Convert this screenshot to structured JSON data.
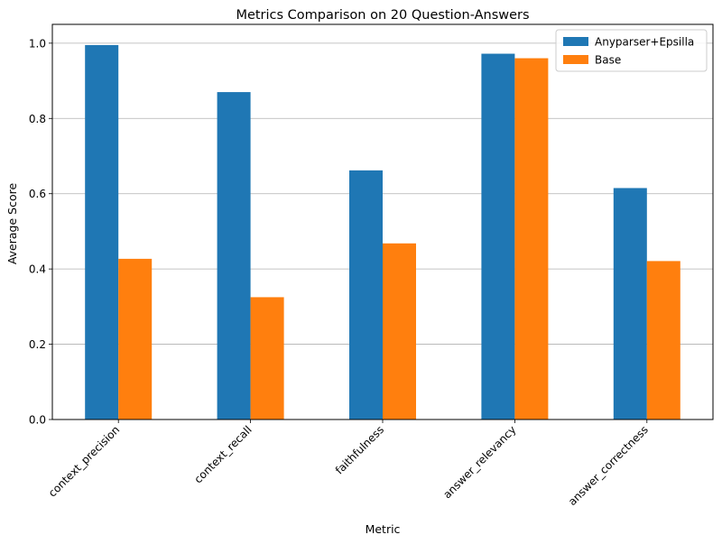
{
  "chart_data": {
    "type": "bar",
    "title": "Metrics Comparison on 20 Question-Answers",
    "xlabel": "Metric",
    "ylabel": "Average Score",
    "categories": [
      "context_precision",
      "context_recall",
      "faithfulness",
      "answer_relevancy",
      "answer_correctness"
    ],
    "series": [
      {
        "name": "Anyparser+Epsilla",
        "color": "#1f77b4",
        "values": [
          0.995,
          0.87,
          0.662,
          0.972,
          0.615
        ]
      },
      {
        "name": "Base",
        "color": "#ff7f0e",
        "values": [
          0.427,
          0.325,
          0.468,
          0.96,
          0.421
        ]
      }
    ],
    "ylim": [
      0,
      1.05
    ],
    "yticks": [
      "0.0",
      "0.2",
      "0.4",
      "0.6",
      "0.8",
      "1.0"
    ],
    "grid": "horizontal",
    "legend_position": "top-right"
  }
}
